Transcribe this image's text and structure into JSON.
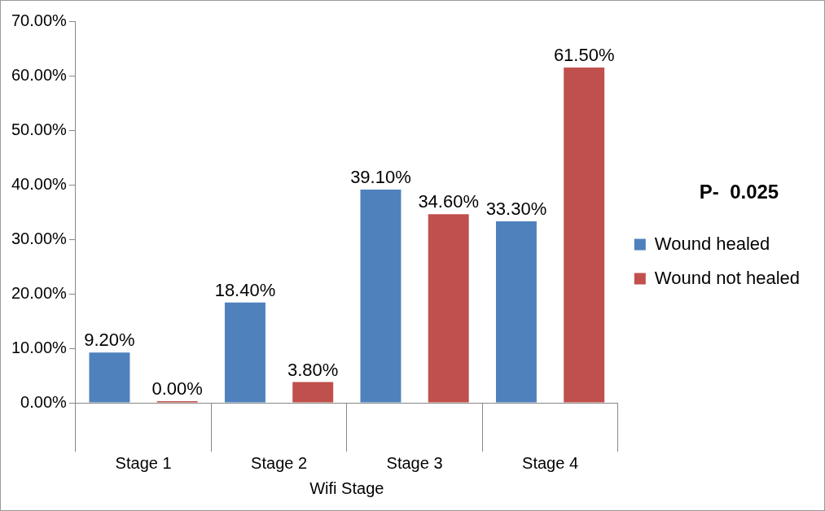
{
  "chart_data": {
    "type": "bar",
    "xlabel": "Wifi Stage",
    "categories": [
      "Stage 1",
      "Stage 2",
      "Stage 3",
      "Stage 4"
    ],
    "series": [
      {
        "name": "Wound healed",
        "color": "#4f81bd",
        "values": [
          9.2,
          18.4,
          39.1,
          33.3
        ],
        "value_labels": [
          "9.20%",
          "18.40%",
          "39.10%",
          "33.30%"
        ]
      },
      {
        "name": "Wound not healed",
        "color": "#c0504d",
        "values": [
          0,
          3.8,
          34.6,
          61.5
        ],
        "value_labels": [
          "0.00%",
          "3.80%",
          "34.60%",
          "61.50%"
        ]
      }
    ],
    "ylim": [
      0,
      70
    ],
    "yticks": [
      {
        "value": 0,
        "label": "0.00%"
      },
      {
        "value": 10,
        "label": "10.00%"
      },
      {
        "value": 20,
        "label": "20.00%"
      },
      {
        "value": 30,
        "label": "30.00%"
      },
      {
        "value": 40,
        "label": "40.00%"
      },
      {
        "value": 50,
        "label": "50.00%"
      },
      {
        "value": 60,
        "label": "60.00%"
      },
      {
        "value": 70,
        "label": "70.00%"
      }
    ],
    "grid": false,
    "legend": "right",
    "annotations": [
      "P-  0.025"
    ]
  }
}
